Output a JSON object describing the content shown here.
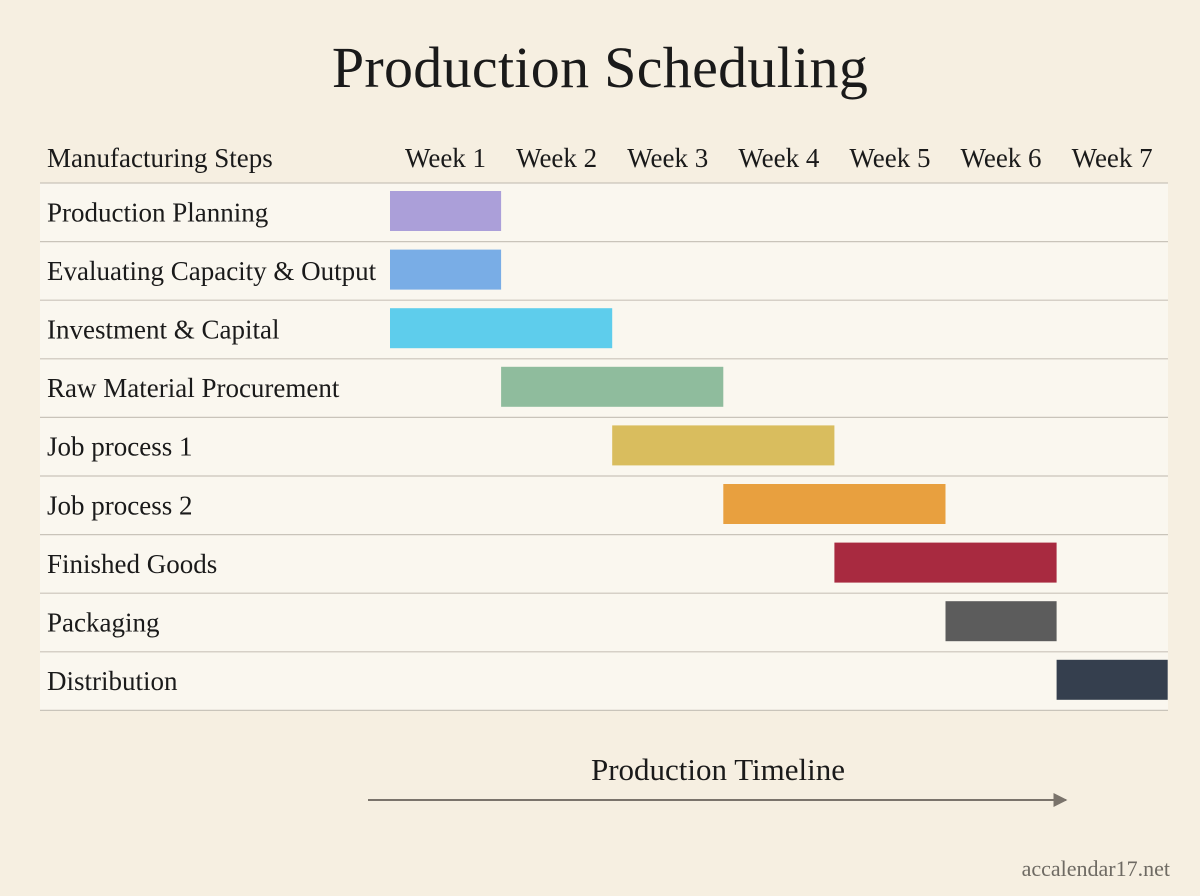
{
  "chart_data": {
    "type": "gantt",
    "title": "Production Scheduling",
    "task_header": "Manufacturing Steps",
    "weeks": [
      "Week 1",
      "Week 2",
      "Week 3",
      "Week 4",
      "Week 5",
      "Week 6",
      "Week 7"
    ],
    "tasks": [
      {
        "name": "Production Planning",
        "start_week": 1,
        "end_week": 1,
        "color": "#ab9fd9"
      },
      {
        "name": "Evaluating Capacity & Output",
        "start_week": 1,
        "end_week": 1,
        "color": "#79ade6"
      },
      {
        "name": "Investment & Capital",
        "start_week": 1,
        "end_week": 2,
        "color": "#5ecdec"
      },
      {
        "name": "Raw Material Procurement",
        "start_week": 2,
        "end_week": 3,
        "color": "#8fbc9d"
      },
      {
        "name": "Job process 1",
        "start_week": 3,
        "end_week": 4,
        "color": "#d9bd5e"
      },
      {
        "name": "Job process 2",
        "start_week": 4,
        "end_week": 5,
        "color": "#e8a03f"
      },
      {
        "name": "Finished Goods",
        "start_week": 5,
        "end_week": 6,
        "color": "#a82a40"
      },
      {
        "name": "Packaging",
        "start_week": 6,
        "end_week": 6,
        "color": "#5c5c5c"
      },
      {
        "name": "Distribution",
        "start_week": 7,
        "end_week": 7,
        "color": "#353f4e"
      }
    ],
    "timeline_label": "Production Timeline",
    "grid": "horizontal row dividers"
  },
  "watermark": "accalendar17.net",
  "colors": {
    "background": "#f6efe1",
    "row_background": "#faf7ef",
    "divider": "#c9c4ba",
    "arrow": "#7a736b"
  }
}
